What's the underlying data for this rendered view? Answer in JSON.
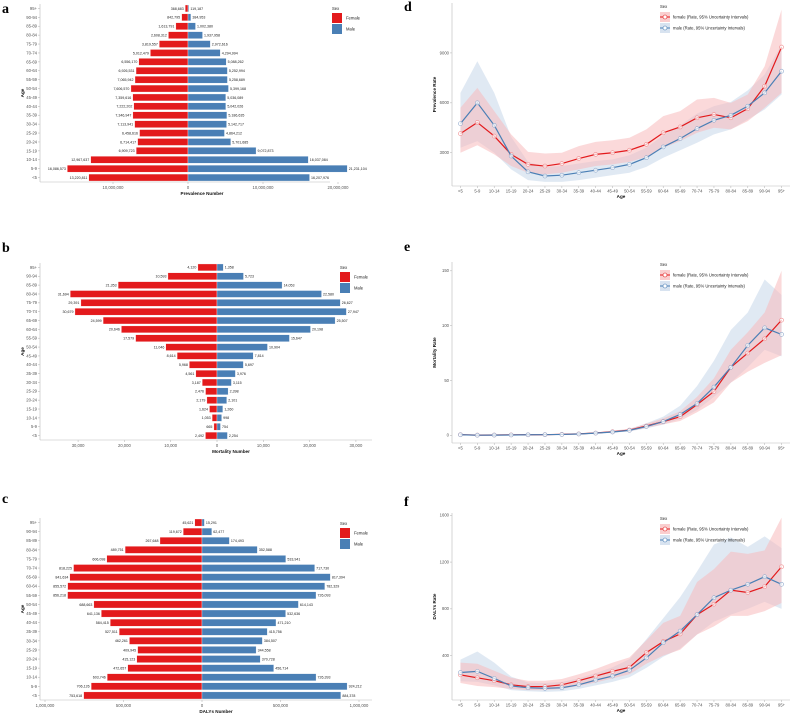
{
  "panels": [
    {
      "id": "a",
      "letter": "a"
    },
    {
      "id": "b",
      "letter": "b"
    },
    {
      "id": "c",
      "letter": "c"
    },
    {
      "id": "d",
      "letter": "d"
    },
    {
      "id": "e",
      "letter": "e"
    },
    {
      "id": "f",
      "letter": "f"
    }
  ],
  "colors": {
    "female": "#e31a1c",
    "male": "#4a7fb5",
    "female_band": "#f8b9bb",
    "male_band": "#c7d7ea"
  },
  "chart_data": [
    {
      "id": "a",
      "type": "bar",
      "orientation": "horizontal-pyramid",
      "title": "",
      "xlabel": "Prevalence Number",
      "ylabel": "Age",
      "xlim": [
        -17000000,
        22000000
      ],
      "x_ticks": [
        {
          "value": -10000000,
          "label": "10,000,000"
        },
        {
          "value": 0,
          "label": "0"
        },
        {
          "value": 10000000,
          "label": "10,000,000"
        },
        {
          "value": 20000000,
          "label": "20,000,000"
        }
      ],
      "categories": [
        "<5",
        "5-9",
        "10-14",
        "15-19",
        "20-24",
        "25-29",
        "30-34",
        "35-39",
        "40-44",
        "45-49",
        "50-54",
        "55-59",
        "60-64",
        "65-69",
        "70-74",
        "75-79",
        "80-84",
        "85-89",
        "90-94",
        "95+"
      ],
      "legend": {
        "title": "Sex",
        "entries": [
          "Female",
          "Male"
        ],
        "position": "top-right"
      },
      "series": [
        {
          "name": "Female",
          "values": [
            13220811,
            16086573,
            12967637,
            6909723,
            6714417,
            6458616,
            7113941,
            7346947,
            7222202,
            7359616,
            7606570,
            7065942,
            6926531,
            6556170,
            5012479,
            3819557,
            2608312,
            1613791,
            842795,
            368683
          ],
          "labels": [
            "13,220,811",
            "16,086,573",
            "12,967,637",
            "6,909,723",
            "6,714,417",
            "6,458,616",
            "7,113,941",
            "7,346,947",
            "7,222,202",
            "7,359,616",
            "7,606,570",
            "7,065,942",
            "6,926,531",
            "6,556,170",
            "5,012,479",
            "3,819,557",
            "2,608,312",
            "1,613,791",
            "842,795",
            "368,683"
          ]
        },
        {
          "name": "Male",
          "values": [
            16207976,
            21231104,
            16037084,
            9072873,
            5701685,
            4864212,
            5142717,
            5186635,
            5042026,
            5036089,
            5399168,
            5258689,
            5252994,
            5088262,
            4294994,
            2972616,
            1937958,
            1002380,
            384953,
            119187
          ],
          "labels": [
            "16,207,976",
            "21,231,104",
            "16,037,084",
            "9,072,873",
            "5,701,685",
            "4,864,212",
            "5,142,717",
            "5,186,635",
            "5,042,026",
            "5,036,089",
            "5,399,168",
            "5,258,689",
            "5,252,994",
            "5,088,262",
            "4,294,994",
            "2,972,616",
            "1,937,958",
            "1,002,380",
            "384,953",
            "119,187"
          ]
        }
      ]
    },
    {
      "id": "b",
      "type": "bar",
      "orientation": "horizontal-pyramid",
      "title": "",
      "xlabel": "Mortality Number",
      "ylabel": "Age",
      "xlim": [
        -38000,
        34000
      ],
      "x_ticks": [
        {
          "value": -30000,
          "label": "30,000"
        },
        {
          "value": -20000,
          "label": "20,000"
        },
        {
          "value": -10000,
          "label": "10,000"
        },
        {
          "value": 0,
          "label": "0"
        },
        {
          "value": 10000,
          "label": "10,000"
        },
        {
          "value": 20000,
          "label": "20,000"
        },
        {
          "value": 30000,
          "label": "30,000"
        }
      ],
      "categories": [
        "<5",
        "5-9",
        "10-14",
        "15-19",
        "20-24",
        "25-29",
        "30-34",
        "35-39",
        "40-44",
        "45-49",
        "50-54",
        "55-59",
        "60-64",
        "65-69",
        "70-74",
        "75-79",
        "80-84",
        "85-89",
        "90-94",
        "95+"
      ],
      "legend": {
        "title": "Sex",
        "entries": [
          "Female",
          "Male"
        ],
        "position": "top-right"
      },
      "series": [
        {
          "name": "Female",
          "values": [
            2492,
            665,
            1053,
            1624,
            2179,
            2476,
            3187,
            4561,
            5968,
            8614,
            11046,
            17579,
            20646,
            24599,
            30679,
            29391,
            31694,
            21353,
            10593,
            4120
          ],
          "labels": [
            "2,492",
            "665",
            "1,053",
            "1,624",
            "2,179",
            "2,476",
            "3,187",
            "4,561",
            "5,968",
            "8,614",
            "11,046",
            "17,579",
            "20,646",
            "24,599",
            "30,679",
            "29,391",
            "31,694",
            "21,353",
            "10,593",
            "4,120"
          ]
        },
        {
          "name": "Male",
          "values": [
            2254,
            754,
            998,
            1260,
            2101,
            2398,
            3115,
            3976,
            5697,
            7814,
            10904,
            15647,
            20198,
            25507,
            27947,
            26627,
            22580,
            14053,
            5723,
            1358
          ],
          "labels": [
            "2,254",
            "754",
            "998",
            "1,260",
            "2,101",
            "2,398",
            "3,115",
            "3,976",
            "5,697",
            "7,814",
            "10,904",
            "15,647",
            "20,198",
            "25,507",
            "27,947",
            "26,627",
            "22,580",
            "14,053",
            "5,723",
            "1,358"
          ]
        }
      ]
    },
    {
      "id": "c",
      "type": "bar",
      "orientation": "horizontal-pyramid",
      "title": "",
      "xlabel": "DALYs Number",
      "ylabel": "Age",
      "xlim": [
        -1000000,
        1100000
      ],
      "x_ticks": [
        {
          "value": -1000000,
          "label": "1,000,000"
        },
        {
          "value": -500000,
          "label": "500,000"
        },
        {
          "value": 0,
          "label": "0"
        },
        {
          "value": 500000,
          "label": "500,000"
        },
        {
          "value": 1000000,
          "label": "1,000,000"
        }
      ],
      "categories": [
        "<5",
        "5-9",
        "10-14",
        "15-19",
        "20-24",
        "25-29",
        "30-34",
        "35-39",
        "40-44",
        "45-49",
        "50-54",
        "55-59",
        "60-64",
        "65-69",
        "70-74",
        "75-79",
        "80-84",
        "85-89",
        "90-94",
        "95+"
      ],
      "legend": {
        "title": "Sex",
        "entries": [
          "Female",
          "Male"
        ],
        "position": "top-right"
      },
      "series": [
        {
          "name": "Female",
          "values": [
            753618,
            706126,
            603746,
            472657,
            415123,
            409945,
            462261,
            527511,
            584415,
            641136,
            688663,
            856218,
            855572,
            841634,
            818225,
            606098,
            489751,
            267648,
            119672,
            45621
          ],
          "labels": [
            "753,618",
            "706,126",
            "603,746",
            "472,657",
            "415,123",
            "409,945",
            "462,261",
            "527,511",
            "584,415",
            "641,136",
            "688,663",
            "856,218",
            "855,572",
            "841,634",
            "818,225",
            "606,098",
            "489,751",
            "267,648",
            "119,672",
            "45,621"
          ]
        },
        {
          "name": "Male",
          "values": [
            884378,
            924212,
            726393,
            456714,
            370728,
            344558,
            384507,
            415756,
            471210,
            532636,
            614143,
            726093,
            782329,
            817394,
            717730,
            533941,
            352588,
            174493,
            62477,
            15291
          ],
          "labels": [
            "884,378",
            "924,212",
            "726,393",
            "456,714",
            "370,728",
            "344,558",
            "384,507",
            "415,756",
            "471,210",
            "532,636",
            "614,143",
            "726,093",
            "782,329",
            "817,394",
            "717,730",
            "533,941",
            "352,588",
            "174,493",
            "62,477",
            "15,291"
          ]
        }
      ]
    },
    {
      "id": "d",
      "type": "line",
      "title": "",
      "xlabel": "Age",
      "ylabel": "Prevalence Rate",
      "ylim": [
        1000,
        12000
      ],
      "y_ticks": [
        3000,
        6000,
        9000
      ],
      "grid": false,
      "categories": [
        "<5",
        "5-9",
        "10-14",
        "15-19",
        "20-24",
        "25-29",
        "30-34",
        "35-39",
        "40-44",
        "45-49",
        "50-54",
        "55-59",
        "60-64",
        "65-69",
        "70-74",
        "75-79",
        "80-84",
        "85-89",
        "90-94",
        "95+"
      ],
      "legend": {
        "title": "Sex",
        "entries": [
          "female (Rate, 95% Uncertainty Intervals)",
          "male (Rate, 95% Uncertainty Intervals)"
        ],
        "position": "top-right"
      },
      "series": [
        {
          "name": "female",
          "values": [
            4150,
            4820,
            4000,
            2900,
            2300,
            2200,
            2350,
            2650,
            2900,
            3000,
            3150,
            3500,
            4200,
            4550,
            5100,
            5300,
            5100,
            5650,
            7000,
            9350
          ],
          "lower": [
            3000,
            3450,
            2900,
            2200,
            1800,
            1700,
            1800,
            2000,
            2200,
            2300,
            2450,
            2750,
            3300,
            3700,
            4200,
            4500,
            4400,
            4900,
            5700,
            6600
          ],
          "upper": [
            5700,
            6900,
            5500,
            4100,
            3050,
            2950,
            3000,
            3400,
            3650,
            3750,
            3900,
            4400,
            5200,
            5500,
            6200,
            6300,
            6000,
            6500,
            8200,
            11600
          ]
        },
        {
          "name": "male",
          "values": [
            4750,
            6000,
            4650,
            2800,
            1850,
            1600,
            1650,
            1800,
            1950,
            2100,
            2300,
            2700,
            3350,
            3850,
            4450,
            4950,
            5250,
            5800,
            6600,
            7900
          ],
          "lower": [
            3300,
            3700,
            3000,
            2000,
            1350,
            1250,
            1250,
            1350,
            1500,
            1650,
            1800,
            2150,
            2700,
            3150,
            3600,
            4100,
            4400,
            5000,
            5600,
            6500
          ],
          "upper": [
            6600,
            8500,
            6600,
            3950,
            2450,
            2150,
            2200,
            2350,
            2500,
            2600,
            2850,
            3300,
            4050,
            4650,
            5350,
            5800,
            6050,
            6750,
            7700,
            9500
          ]
        }
      ]
    },
    {
      "id": "e",
      "type": "line",
      "title": "",
      "xlabel": "Age",
      "ylabel": "Mortality Rate",
      "ylim": [
        -7,
        158
      ],
      "y_ticks": [
        0,
        50,
        100,
        150
      ],
      "grid": false,
      "categories": [
        "<5",
        "5-9",
        "10-14",
        "15-19",
        "20-24",
        "25-29",
        "30-34",
        "35-39",
        "40-44",
        "45-49",
        "50-54",
        "55-59",
        "60-64",
        "65-69",
        "70-74",
        "75-79",
        "80-84",
        "85-89",
        "90-94",
        "95+"
      ],
      "legend": {
        "title": "Sex",
        "entries": [
          "female (Rate, 95% Uncertainty Intervals)",
          "male (Rate, 95% Uncertainty Intervals)"
        ],
        "position": "top-right"
      },
      "series": [
        {
          "name": "female",
          "values": [
            0.6,
            0.2,
            0.3,
            0.4,
            0.5,
            0.6,
            0.9,
            1.3,
            2.1,
            3.3,
            4.8,
            8.5,
            12.5,
            17,
            28,
            40,
            62,
            75,
            88,
            105
          ],
          "lower": [
            0.4,
            0.1,
            0.2,
            0.3,
            0.4,
            0.5,
            0.7,
            1.0,
            1.7,
            2.6,
            3.8,
            6.8,
            10,
            13,
            21,
            30,
            48,
            58,
            66,
            73
          ],
          "upper": [
            0.8,
            0.3,
            0.4,
            0.5,
            0.6,
            0.8,
            1.2,
            1.7,
            2.7,
            4.2,
            6.0,
            10.5,
            15.5,
            22,
            35,
            52,
            78,
            94,
            112,
            150
          ]
        },
        {
          "name": "male",
          "values": [
            0.5,
            0.1,
            0.2,
            0.3,
            0.5,
            0.6,
            0.8,
            1.2,
            2.0,
            3.0,
            4.5,
            8.0,
            12.5,
            19,
            29,
            44,
            62,
            82,
            98,
            92
          ],
          "lower": [
            0.3,
            0.1,
            0.1,
            0.2,
            0.4,
            0.5,
            0.6,
            0.9,
            1.5,
            2.3,
            3.6,
            6.3,
            9.8,
            15,
            23,
            35,
            48,
            62,
            78,
            72
          ],
          "upper": [
            0.7,
            0.2,
            0.3,
            0.4,
            0.6,
            0.8,
            1.0,
            1.6,
            2.6,
            3.8,
            5.8,
            11,
            17,
            27,
            45,
            68,
            96,
            112,
            142,
            128
          ]
        }
      ]
    },
    {
      "id": "f",
      "type": "line",
      "title": "",
      "xlabel": "Age",
      "ylabel": "DALYs Rate",
      "ylim": [
        20,
        1620
      ],
      "y_ticks": [
        400,
        800,
        1200,
        1600
      ],
      "grid": false,
      "categories": [
        "<5",
        "5-9",
        "10-14",
        "15-19",
        "20-24",
        "25-29",
        "30-34",
        "35-39",
        "40-44",
        "45-49",
        "50-54",
        "55-59",
        "60-64",
        "65-69",
        "70-74",
        "75-79",
        "80-84",
        "85-89",
        "90-94",
        "95+"
      ],
      "legend": {
        "title": "Sex",
        "entries": [
          "female (Rate, 95% Uncertainty Intervals)",
          "male (Rate, 95% Uncertainty Intervals)"
        ],
        "position": "top-right"
      },
      "series": [
        {
          "name": "female",
          "values": [
            235,
            210,
            185,
            150,
            135,
            135,
            150,
            185,
            225,
            265,
            300,
            425,
            520,
            585,
            750,
            840,
            960,
            940,
            990,
            1160
          ],
          "lower": [
            165,
            140,
            130,
            115,
            105,
            105,
            115,
            140,
            170,
            205,
            240,
            330,
            400,
            450,
            580,
            650,
            740,
            740,
            780,
            850
          ],
          "upper": [
            340,
            330,
            270,
            210,
            185,
            185,
            200,
            240,
            285,
            340,
            385,
            530,
            680,
            740,
            1030,
            1140,
            1290,
            1270,
            1300,
            1580
          ]
        },
        {
          "name": "male",
          "values": [
            255,
            265,
            205,
            140,
            125,
            120,
            125,
            150,
            190,
            225,
            275,
            380,
            510,
            610,
            750,
            895,
            960,
            1010,
            1075,
            1010
          ],
          "lower": [
            180,
            175,
            145,
            105,
            95,
            90,
            95,
            115,
            145,
            175,
            215,
            295,
            390,
            460,
            580,
            690,
            750,
            800,
            860,
            800
          ],
          "upper": [
            365,
            435,
            340,
            220,
            170,
            165,
            175,
            205,
            250,
            300,
            370,
            540,
            720,
            900,
            1120,
            1350,
            1410,
            1330,
            1420,
            1320
          ]
        }
      ]
    }
  ]
}
